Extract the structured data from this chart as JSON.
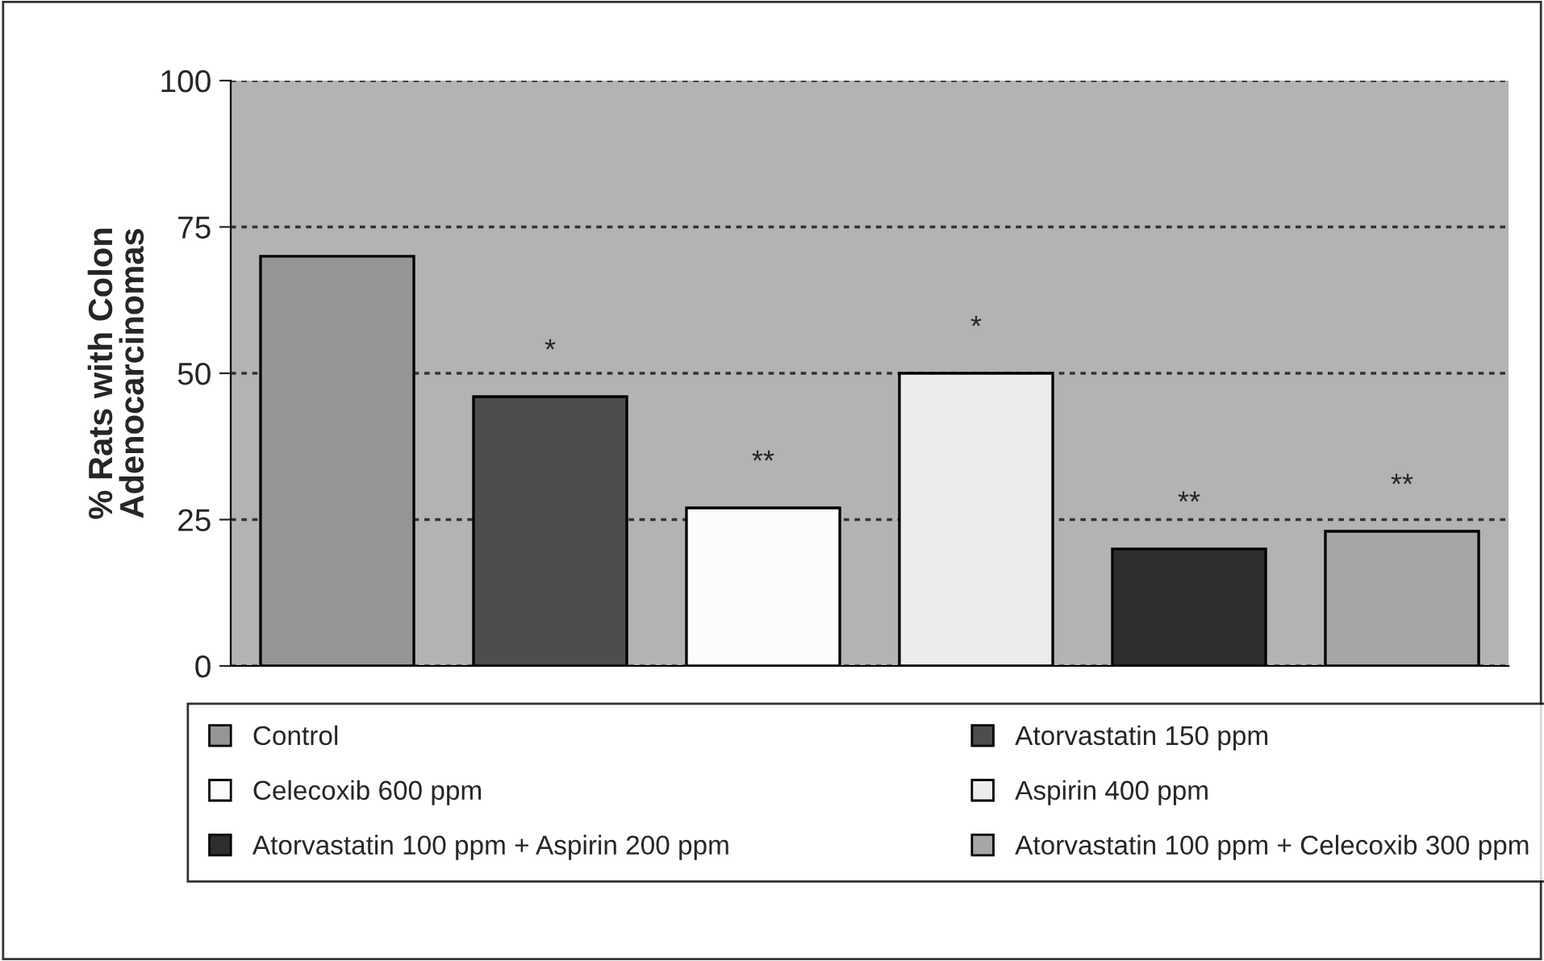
{
  "chart_data": {
    "type": "bar",
    "ylabel": "% Rats with Colon\nAdenocarcinomas",
    "categories": [
      null,
      null,
      null,
      null,
      null,
      null
    ],
    "series": [
      {
        "name": "Control",
        "color": "#969696",
        "values": [
          70,
          null,
          null,
          null,
          null,
          null
        ],
        "value_labels": [
          null,
          null,
          null,
          null,
          null,
          null
        ]
      },
      {
        "name": "Atorvastatin 150 ppm",
        "color": "#4d4d4d",
        "values": [
          null,
          46,
          null,
          null,
          null,
          null
        ],
        "value_labels": [
          null,
          "*",
          null,
          null,
          null,
          null
        ]
      },
      {
        "name": "Celecoxib 600 ppm",
        "color": "#fcfcfc",
        "values": [
          null,
          null,
          27,
          null,
          null,
          null
        ],
        "value_labels": [
          null,
          null,
          "**",
          null,
          null,
          null
        ]
      },
      {
        "name": "Aspirin 400 ppm",
        "color": "#ececec",
        "values": [
          null,
          null,
          null,
          50,
          null,
          null
        ],
        "value_labels": [
          null,
          null,
          null,
          "*",
          null,
          null
        ]
      },
      {
        "name": "Atorvastatin 100 ppm + Aspirin 200 ppm",
        "color": "#2e2e2e",
        "values": [
          null,
          null,
          null,
          null,
          20,
          null
        ],
        "value_labels": [
          null,
          null,
          null,
          null,
          "**",
          null
        ]
      },
      {
        "name": "Atorvastatin 100 ppm + Celecoxib 300 ppm",
        "color": "#a6a6a6",
        "values": [
          null,
          null,
          null,
          null,
          null,
          23
        ],
        "value_labels": [
          null,
          null,
          null,
          null,
          null,
          "**"
        ]
      }
    ],
    "ylim": [
      0,
      100
    ],
    "yticks": [
      0,
      25,
      50,
      75,
      100
    ],
    "grid": "y",
    "legend": "bottom"
  }
}
